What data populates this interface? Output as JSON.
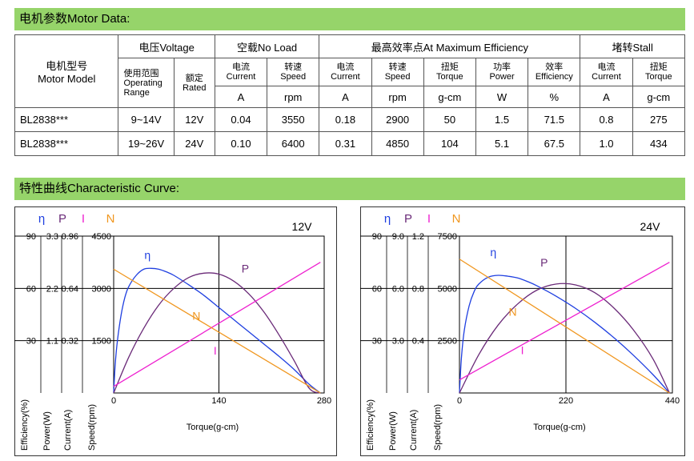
{
  "sections": {
    "motor_data_title": "电机参数Motor Data:",
    "curve_title": "特性曲线Characteristic Curve:"
  },
  "table": {
    "model_header": [
      "电机型号",
      "Motor Model"
    ],
    "voltage_header": "电压Voltage",
    "no_load_header": "空载No Load",
    "max_eff_header": "最高效率点At Maximum Efficiency",
    "stall_header": "堵转Stall",
    "range_header": [
      "使用范围",
      "Operating",
      "Range"
    ],
    "rated_header": [
      "额定",
      "Rated"
    ],
    "current_header": [
      "电流",
      "Current"
    ],
    "speed_header": [
      "转速",
      "Speed"
    ],
    "torque_header": [
      "扭矩",
      "Torque"
    ],
    "power_header": [
      "功率",
      "Power"
    ],
    "efficiency_header": [
      "效率",
      "Efficiency"
    ],
    "units": [
      "A",
      "rpm",
      "A",
      "rpm",
      "g-cm",
      "W",
      "%",
      "A",
      "g-cm"
    ],
    "rows": [
      {
        "model": "BL2838***",
        "range": "9~14V",
        "rated": "12V",
        "nl_current": "0.04",
        "nl_speed": "3550",
        "me_current": "0.18",
        "me_speed": "2900",
        "me_torque": "50",
        "me_power": "1.5",
        "me_eff": "71.5",
        "st_current": "0.8",
        "st_torque": "275"
      },
      {
        "model": "BL2838***",
        "range": "19~26V",
        "rated": "24V",
        "nl_current": "0.10",
        "nl_speed": "6400",
        "me_current": "0.31",
        "me_speed": "4850",
        "me_torque": "104",
        "me_power": "5.1",
        "me_eff": "67.5",
        "st_current": "1.0",
        "st_torque": "434"
      }
    ]
  },
  "chart_data": [
    {
      "type": "line",
      "title": "12V",
      "xlabel": "Torque(g-cm)",
      "x_ticks": [
        0,
        140,
        280
      ],
      "xlim": [
        0,
        280
      ],
      "axis_symbols": [
        "η",
        "P",
        "I",
        "N"
      ],
      "axis_titles": [
        "Efficiency(%)",
        "Power(W)",
        "Current(A)",
        "Speed(rpm)"
      ],
      "axis_ticks": {
        "efficiency": [
          "30",
          "60",
          "90"
        ],
        "power": [
          "1.1",
          "2.2",
          "3.3"
        ],
        "current": [
          "0.32",
          "0.64",
          "0.96"
        ],
        "speed": [
          "1500",
          "3000",
          "4500"
        ]
      },
      "axis_max": {
        "efficiency": 90,
        "power": 3.3,
        "current": 0.96,
        "speed": 4500
      },
      "series": [
        {
          "name": "η",
          "axis": "efficiency",
          "color": "#1f3fe0",
          "x": [
            0,
            2,
            5,
            10,
            15,
            20,
            30,
            40,
            50,
            60,
            70,
            80,
            100,
            120,
            140,
            160,
            180,
            200,
            220,
            240,
            260,
            275
          ],
          "y": [
            0,
            16,
            30,
            45,
            55,
            61,
            67.5,
            71,
            71.5,
            71,
            69.5,
            67.5,
            62,
            56,
            49,
            42,
            35,
            28,
            21,
            13.5,
            5,
            0
          ]
        },
        {
          "name": "P",
          "axis": "power",
          "color": "#6a2a78",
          "x": [
            0,
            20,
            40,
            60,
            80,
            100,
            120,
            140,
            160,
            180,
            200,
            220,
            240,
            260,
            275
          ],
          "y": [
            0,
            0.75,
            1.36,
            1.85,
            2.2,
            2.43,
            2.52,
            2.5,
            2.35,
            2.08,
            1.7,
            1.22,
            0.68,
            0.1,
            0
          ]
        },
        {
          "name": "I",
          "axis": "current",
          "color": "#ee1fcf",
          "x": [
            0,
            275
          ],
          "y": [
            0.04,
            0.8
          ]
        },
        {
          "name": "N",
          "axis": "speed",
          "color": "#f0961e",
          "x": [
            0,
            275
          ],
          "y": [
            3550,
            0
          ]
        }
      ],
      "label_positions": {
        "η": [
          45,
          3850
        ],
        "P": [
          175,
          3450
        ],
        "N": [
          110,
          2100
        ],
        "I": [
          135,
          1100
        ]
      }
    },
    {
      "type": "line",
      "title": "24V",
      "xlabel": "Torque(g-cm)",
      "x_ticks": [
        0,
        220,
        440
      ],
      "xlim": [
        0,
        440
      ],
      "axis_symbols": [
        "η",
        "P",
        "I",
        "N"
      ],
      "axis_titles": [
        "Efficiency(%)",
        "Power(W)",
        "Current(A)",
        "Speed(rpm)"
      ],
      "axis_ticks": {
        "efficiency": [
          "30",
          "60",
          "90"
        ],
        "power": [
          "3.0",
          "6.0",
          "9.0"
        ],
        "current": [
          "0.4",
          "0.8",
          "1.2"
        ],
        "speed": [
          "2500",
          "5000",
          "7500"
        ]
      },
      "axis_max": {
        "efficiency": 90,
        "power": 9.0,
        "current": 1.2,
        "speed": 7500
      },
      "series": [
        {
          "name": "η",
          "axis": "efficiency",
          "color": "#1f3fe0",
          "x": [
            0,
            4,
            10,
            20,
            30,
            40,
            60,
            80,
            100,
            120,
            140,
            160,
            200,
            240,
            280,
            320,
            360,
            400,
            434
          ],
          "y": [
            0,
            20,
            36,
            50,
            58,
            62.5,
            66.5,
            67.5,
            67,
            66,
            64,
            61.5,
            55.5,
            48.5,
            40.5,
            31.5,
            21.5,
            10.5,
            0
          ]
        },
        {
          "name": "P",
          "axis": "power",
          "color": "#6a2a78",
          "x": [
            0,
            40,
            80,
            120,
            160,
            200,
            240,
            280,
            320,
            360,
            400,
            434
          ],
          "y": [
            0,
            2.2,
            3.9,
            5.1,
            5.9,
            6.25,
            6.2,
            5.75,
            4.85,
            3.6,
            1.95,
            0
          ]
        },
        {
          "name": "I",
          "axis": "current",
          "color": "#ee1fcf",
          "x": [
            0,
            434
          ],
          "y": [
            0.1,
            1.0
          ]
        },
        {
          "name": "N",
          "axis": "speed",
          "color": "#f0961e",
          "x": [
            0,
            434
          ],
          "y": [
            6400,
            0
          ]
        }
      ],
      "label_positions": {
        "η": [
          70,
          6550
        ],
        "P": [
          175,
          6050
        ],
        "N": [
          110,
          3700
        ],
        "I": [
          130,
          1850
        ]
      }
    }
  ]
}
